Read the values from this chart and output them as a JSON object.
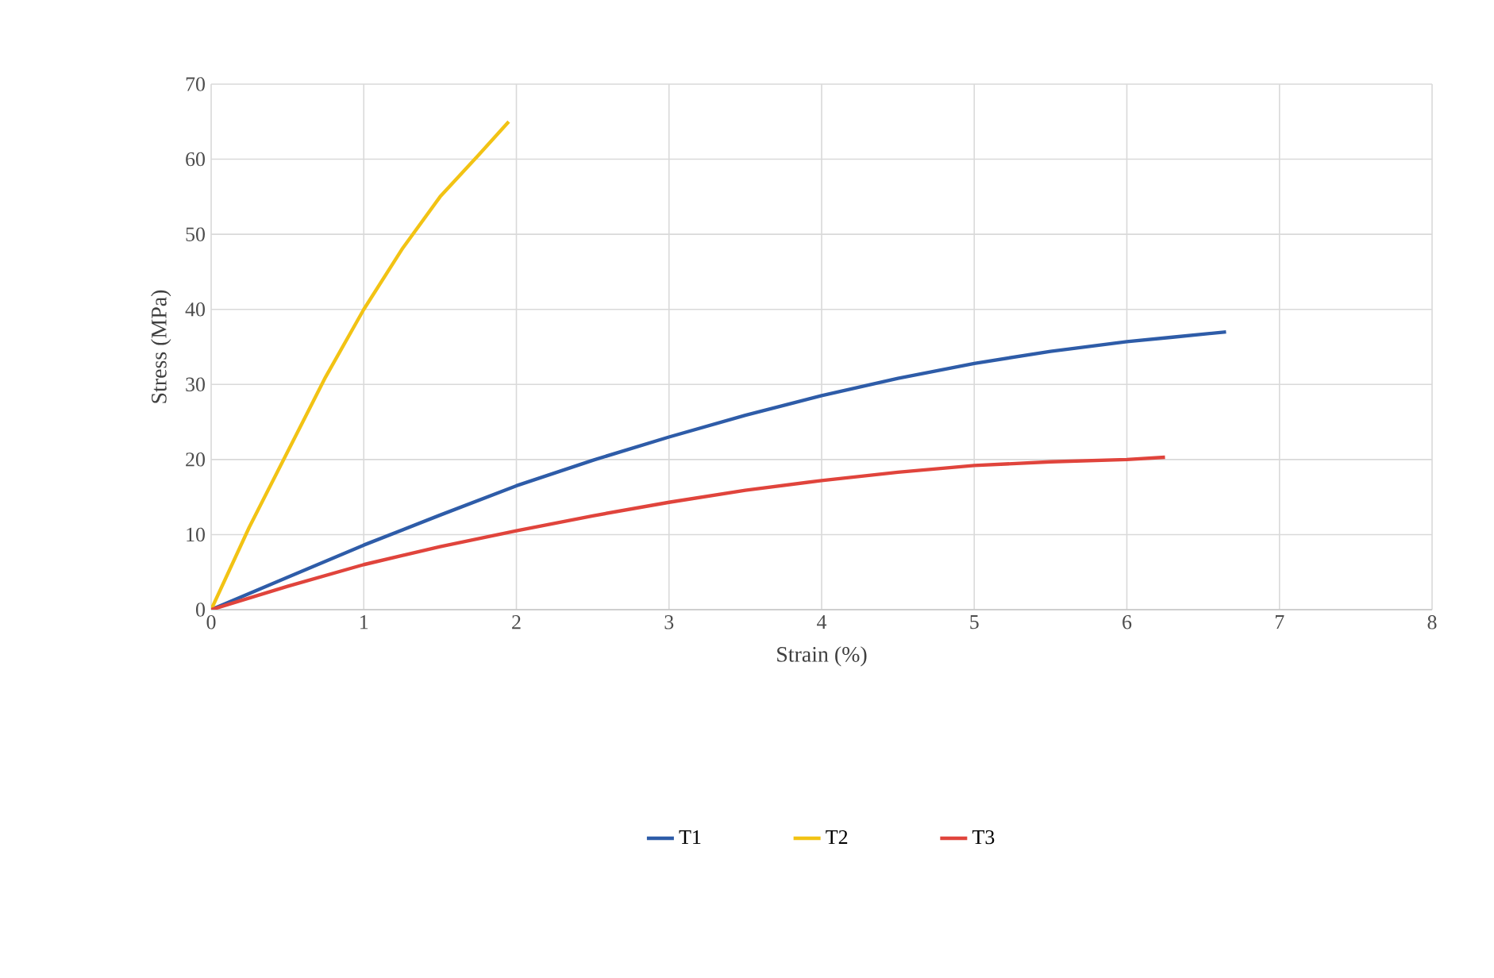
{
  "chart_data": {
    "type": "line",
    "xlabel": "Strain (%)",
    "ylabel": "Stress (MPa)",
    "xlim": [
      0,
      8
    ],
    "xticks": [
      0,
      1,
      2,
      3,
      4,
      5,
      6,
      7,
      8
    ],
    "ylim": [
      0,
      70
    ],
    "yticks": [
      0,
      10,
      20,
      30,
      40,
      50,
      60,
      70
    ],
    "grid": true,
    "legend": "bottom",
    "series": [
      {
        "name": "T1",
        "color": "#2e5ca8",
        "x": [
          0,
          0.5,
          1,
          1.5,
          2,
          2.5,
          3,
          3.5,
          4,
          4.5,
          5,
          5.5,
          6,
          6.3,
          6.65
        ],
        "values": [
          0,
          4.3,
          8.6,
          12.6,
          16.5,
          19.9,
          23,
          25.9,
          28.5,
          30.8,
          32.8,
          34.4,
          35.7,
          36.3,
          37
        ]
      },
      {
        "name": "T2",
        "color": "#f2c314",
        "x": [
          0,
          0.25,
          0.5,
          0.75,
          1,
          1.25,
          1.5,
          1.75,
          1.95
        ],
        "values": [
          0,
          11,
          21,
          31,
          40,
          48,
          55,
          60.5,
          65
        ]
      },
      {
        "name": "T3",
        "color": "#e0443c",
        "x": [
          0,
          0.5,
          1,
          1.5,
          2,
          2.5,
          3,
          3.5,
          4,
          4.5,
          5,
          5.5,
          6,
          6.25
        ],
        "values": [
          0,
          3.1,
          6,
          8.4,
          10.5,
          12.5,
          14.3,
          15.9,
          17.2,
          18.3,
          19.2,
          19.7,
          20,
          20.3
        ]
      }
    ]
  }
}
